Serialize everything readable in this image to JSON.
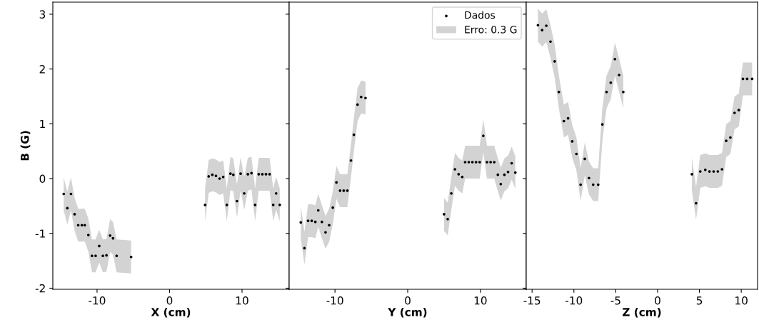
{
  "chart_data": [
    {
      "type": "scatter",
      "xlabel": "X (cm)",
      "ylabel": "B (G)",
      "xlim": [
        -16.1,
        16.5
      ],
      "xticks": [
        -10,
        0,
        10
      ],
      "ylim": [
        -2.02,
        3.22
      ],
      "yticks": [
        -2,
        -1,
        0,
        1,
        2,
        3
      ],
      "grid": false,
      "marker": "circle",
      "series": [
        {
          "color": "#000000",
          "x": [
            -14.6,
            -14.1,
            -13.6,
            -13.1,
            -12.6,
            -12.1,
            -11.7,
            -11.2,
            -10.7,
            -10.2,
            -9.7,
            -9.2,
            -8.7,
            -8.2,
            -7.8,
            -7.3,
            -5.3,
            0,
            4.9,
            5.4,
            5.9,
            6.4,
            6.9,
            7.4,
            7.9,
            8.4,
            8.8,
            9.3,
            9.8,
            10.3,
            10.8,
            11.3,
            11.8,
            12.3,
            12.8,
            13.3,
            13.8,
            14.3,
            14.7,
            15.2
          ],
          "values": [
            -0.28,
            -0.54,
            -0.28,
            -0.65,
            -0.85,
            -0.85,
            -0.85,
            -1.03,
            -1.41,
            -1.41,
            -1.23,
            -1.41,
            -1.4,
            -1.04,
            -1.09,
            -1.41,
            -1.43,
            null,
            -0.48,
            0.04,
            0.07,
            0.05,
            0.0,
            0.03,
            -0.48,
            0.09,
            0.07,
            -0.41,
            0.09,
            -0.27,
            0.08,
            0.1,
            -0.48,
            0.08,
            0.08,
            0.08,
            0.08,
            -0.48,
            -0.27,
            -0.48
          ],
          "lower": [
            -0.58,
            -0.84,
            -0.58,
            -0.95,
            -1.15,
            -1.15,
            -1.15,
            -1.33,
            -1.71,
            -1.71,
            -1.53,
            -1.71,
            -1.7,
            -1.34,
            -1.39,
            -1.71,
            -1.73,
            null,
            -0.78,
            -0.26,
            -0.23,
            -0.25,
            -0.3,
            -0.27,
            -0.78,
            -0.21,
            -0.23,
            -0.71,
            -0.21,
            -0.57,
            -0.22,
            -0.2,
            -0.78,
            -0.22,
            -0.22,
            -0.22,
            -0.22,
            -0.78,
            -0.57,
            -0.78
          ],
          "upper": [
            0.02,
            -0.24,
            0.02,
            -0.35,
            -0.55,
            -0.55,
            -0.55,
            -0.73,
            -1.11,
            -1.11,
            -0.93,
            -1.11,
            -1.1,
            -0.74,
            -0.79,
            -1.11,
            -1.13,
            null,
            -0.18,
            0.34,
            0.37,
            0.35,
            0.3,
            0.33,
            -0.18,
            0.39,
            0.37,
            -0.11,
            0.39,
            0.03,
            0.38,
            0.4,
            -0.18,
            0.38,
            0.38,
            0.38,
            0.38,
            -0.18,
            0.03,
            -0.18
          ]
        }
      ]
    },
    {
      "type": "scatter",
      "xlabel": "Y (cm)",
      "xlim": [
        -16.3,
        16.3
      ],
      "xticks": [
        -10,
        0,
        10
      ],
      "ylim": [
        -2.02,
        3.22
      ],
      "yticks": [
        -2,
        -1,
        0,
        1,
        2,
        3
      ],
      "tick_labels": "x",
      "grid": false,
      "legend": "top right",
      "marker": "circle",
      "annotations": [
        "Erro: 0.3 G"
      ],
      "series": [
        {
          "name": "Dados",
          "color": "#000000",
          "x": [
            -14.7,
            -14.2,
            -13.7,
            -13.2,
            -12.7,
            -12.3,
            -11.8,
            -11.3,
            -10.8,
            -10.3,
            -9.8,
            -9.3,
            -8.8,
            -8.3,
            -7.8,
            -7.4,
            -6.9,
            -6.4,
            -5.8,
            0,
            5.0,
            5.5,
            6.0,
            6.5,
            7.0,
            7.5,
            7.9,
            8.4,
            8.9,
            9.4,
            9.9,
            10.4,
            10.9,
            11.4,
            11.9,
            12.4,
            12.8,
            13.3,
            13.8,
            14.3,
            14.8
          ],
          "values": [
            -0.8,
            -1.27,
            -0.77,
            -0.77,
            -0.79,
            -0.58,
            -0.79,
            -0.98,
            -0.85,
            -0.53,
            -0.07,
            -0.22,
            -0.22,
            -0.22,
            0.33,
            0.8,
            1.35,
            1.49,
            1.47,
            null,
            -0.65,
            -0.74,
            -0.27,
            0.17,
            0.08,
            0.03,
            0.3,
            0.3,
            0.3,
            0.3,
            0.3,
            0.78,
            0.3,
            0.3,
            0.3,
            0.07,
            -0.1,
            0.07,
            0.12,
            0.28,
            0.11
          ],
          "lower": [
            -1.1,
            -1.57,
            -1.07,
            -1.07,
            -1.09,
            -0.88,
            -1.09,
            -1.28,
            -1.15,
            -0.83,
            -0.37,
            -0.52,
            -0.52,
            -0.52,
            0.03,
            0.5,
            1.05,
            1.19,
            1.17,
            null,
            -0.95,
            -1.04,
            -0.57,
            -0.13,
            -0.22,
            -0.27,
            0,
            0,
            0,
            0,
            0,
            0.48,
            0,
            0,
            0,
            -0.23,
            -0.4,
            -0.23,
            -0.18,
            -0.02,
            -0.19
          ],
          "upper": [
            -0.5,
            -0.97,
            -0.47,
            -0.47,
            -0.49,
            -0.28,
            -0.49,
            -0.68,
            -0.55,
            -0.23,
            0.23,
            0.08,
            0.08,
            0.08,
            0.63,
            1.1,
            1.65,
            1.79,
            1.77,
            null,
            -0.35,
            -0.44,
            0.03,
            0.47,
            0.38,
            0.33,
            0.6,
            0.6,
            0.6,
            0.6,
            0.6,
            1.08,
            0.6,
            0.6,
            0.6,
            0.37,
            0.2,
            0.37,
            0.42,
            0.58,
            0.41
          ]
        }
      ]
    },
    {
      "type": "scatter",
      "xlabel": "Z (cm)",
      "xlim": [
        -15.7,
        11.95
      ],
      "xticks": [
        -15,
        -10,
        -5,
        0,
        5,
        10
      ],
      "ylim": [
        -2.02,
        3.22
      ],
      "yticks": [
        -2,
        -1,
        0,
        1,
        2,
        3
      ],
      "tick_labels": "x",
      "grid": false,
      "marker": "circle",
      "series": [
        {
          "color": "#000000",
          "x": [
            -14.3,
            -13.8,
            -13.3,
            -12.8,
            -12.3,
            -11.8,
            -11.2,
            -10.7,
            -10.2,
            -9.7,
            -9.2,
            -8.7,
            -8.2,
            -7.7,
            -7.1,
            -6.6,
            -6.1,
            -5.6,
            -5.1,
            -4.6,
            -4.1,
            0,
            4.1,
            4.6,
            5.1,
            5.7,
            6.2,
            6.7,
            7.2,
            7.7,
            8.2,
            8.7,
            9.2,
            9.7,
            10.2,
            10.7,
            11.3
          ],
          "values": [
            2.8,
            2.71,
            2.79,
            2.5,
            2.14,
            1.58,
            1.05,
            1.1,
            0.68,
            0.45,
            -0.11,
            0.36,
            0.01,
            -0.11,
            -0.11,
            0.99,
            1.58,
            1.75,
            2.18,
            1.89,
            1.58,
            null,
            0.08,
            -0.45,
            0.13,
            0.16,
            0.13,
            0.13,
            0.13,
            0.17,
            0.69,
            0.75,
            1.2,
            1.25,
            1.82,
            1.82,
            1.82
          ],
          "lower": [
            2.5,
            2.41,
            2.49,
            2.2,
            1.84,
            1.28,
            0.75,
            0.8,
            0.38,
            0.15,
            -0.41,
            0.06,
            -0.29,
            -0.41,
            -0.41,
            0.69,
            1.28,
            1.45,
            1.88,
            1.59,
            1.28,
            null,
            -0.22,
            -0.75,
            -0.17,
            -0.14,
            -0.17,
            -0.17,
            -0.17,
            -0.13,
            0.39,
            0.45,
            0.9,
            0.95,
            1.52,
            1.52,
            1.52
          ],
          "upper": [
            3.1,
            3.01,
            3.09,
            2.8,
            2.44,
            1.88,
            1.35,
            1.4,
            0.98,
            0.75,
            0.19,
            0.66,
            0.31,
            0.19,
            0.19,
            1.29,
            1.88,
            2.05,
            2.48,
            2.19,
            1.88,
            null,
            0.38,
            -0.15,
            0.43,
            0.46,
            0.43,
            0.43,
            0.43,
            0.47,
            0.99,
            1.05,
            1.5,
            1.55,
            2.12,
            2.12,
            2.12
          ]
        }
      ]
    }
  ]
}
